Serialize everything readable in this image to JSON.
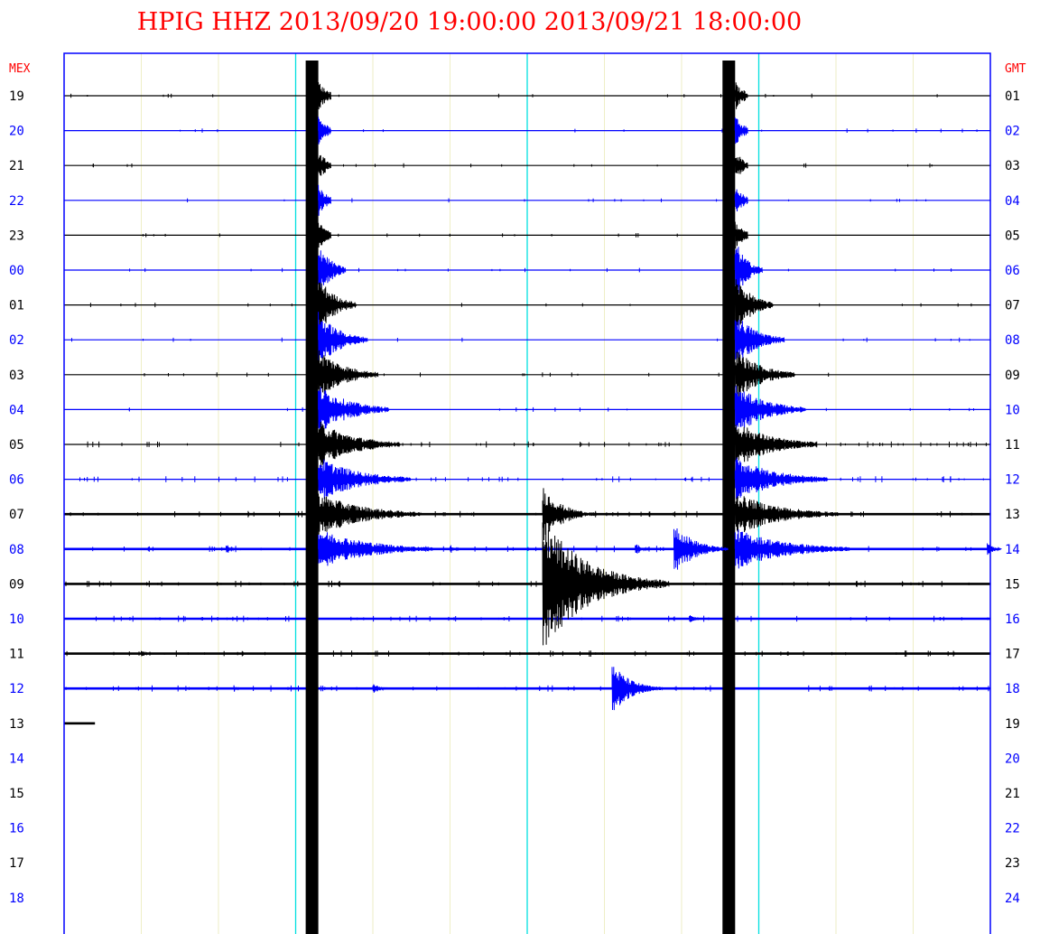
{
  "title": "HPIG HHZ 2013/09/20 19:00:00 2013/09/21 18:00:00",
  "left_header": "MEX",
  "right_header": "GMT",
  "colors": {
    "title": "#ff0000",
    "frame": "#0000ff",
    "trace_a": "#000000",
    "trace_b": "#0000ff",
    "grid": "#eeeec6",
    "marker": "#00e0e0"
  },
  "chart_data": {
    "type": "helicorder",
    "station": "HPIG",
    "channel": "HHZ",
    "start": "2013/09/20 19:00:00",
    "end": "2013/09/21 18:00:00",
    "minutes_per_line": 60,
    "grid_minutes": 5,
    "marker_minutes": [
      15,
      30,
      45
    ],
    "rows": [
      {
        "local": "19",
        "gmt": "01",
        "color": "black",
        "has_data": true
      },
      {
        "local": "20",
        "gmt": "02",
        "color": "blue",
        "has_data": true
      },
      {
        "local": "21",
        "gmt": "03",
        "color": "black",
        "has_data": true
      },
      {
        "local": "22",
        "gmt": "04",
        "color": "blue",
        "has_data": true
      },
      {
        "local": "23",
        "gmt": "05",
        "color": "black",
        "has_data": true
      },
      {
        "local": "00",
        "gmt": "06",
        "color": "blue",
        "has_data": true
      },
      {
        "local": "01",
        "gmt": "07",
        "color": "black",
        "has_data": true
      },
      {
        "local": "02",
        "gmt": "08",
        "color": "blue",
        "has_data": true
      },
      {
        "local": "03",
        "gmt": "09",
        "color": "black",
        "has_data": true
      },
      {
        "local": "04",
        "gmt": "10",
        "color": "blue",
        "has_data": true
      },
      {
        "local": "05",
        "gmt": "11",
        "color": "black",
        "has_data": true
      },
      {
        "local": "06",
        "gmt": "12",
        "color": "blue",
        "has_data": true
      },
      {
        "local": "07",
        "gmt": "13",
        "color": "black",
        "has_data": true
      },
      {
        "local": "08",
        "gmt": "14",
        "color": "blue",
        "has_data": true
      },
      {
        "local": "09",
        "gmt": "15",
        "color": "black",
        "has_data": true
      },
      {
        "local": "10",
        "gmt": "16",
        "color": "blue",
        "has_data": true
      },
      {
        "local": "11",
        "gmt": "17",
        "color": "black",
        "has_data": true
      },
      {
        "local": "12",
        "gmt": "18",
        "color": "blue",
        "has_data": true
      },
      {
        "local": "13",
        "gmt": "19",
        "color": "black",
        "has_data": true,
        "end_minute": 2
      },
      {
        "local": "14",
        "gmt": "20",
        "color": "blue",
        "has_data": false
      },
      {
        "local": "15",
        "gmt": "21",
        "color": "black",
        "has_data": false
      },
      {
        "local": "16",
        "gmt": "22",
        "color": "blue",
        "has_data": false
      },
      {
        "local": "17",
        "gmt": "23",
        "color": "black",
        "has_data": false
      },
      {
        "local": "18",
        "gmt": "24",
        "color": "blue",
        "has_data": false
      }
    ],
    "events": [
      {
        "name": "large-event-1",
        "row": 0,
        "minute": 16.0,
        "amplitude_rows": 28,
        "coda_rows": 14
      },
      {
        "name": "large-event-2",
        "row": 0,
        "minute": 43.0,
        "amplitude_rows": 28,
        "coda_rows": 14
      },
      {
        "name": "event-row07-a",
        "row": 12,
        "minute": 31.0,
        "amplitude_rows": 1.5
      },
      {
        "name": "event-row09-a",
        "row": 14,
        "minute": 31.0,
        "amplitude_rows": 3.5
      },
      {
        "name": "event-row08-a",
        "row": 13,
        "minute": 10.5,
        "amplitude_rows": 0.3
      },
      {
        "name": "event-row08-b",
        "row": 13,
        "minute": 25.0,
        "amplitude_rows": 0.3
      },
      {
        "name": "event-row08-c",
        "row": 13,
        "minute": 37.0,
        "amplitude_rows": 0.4
      },
      {
        "name": "event-row08-d",
        "row": 13,
        "minute": 39.5,
        "amplitude_rows": 1.5
      },
      {
        "name": "event-row08-e",
        "row": 13,
        "minute": 59.8,
        "amplitude_rows": 0.4
      },
      {
        "name": "event-row10-a",
        "row": 15,
        "minute": 40.5,
        "amplitude_rows": 0.3
      },
      {
        "name": "event-row11-a",
        "row": 16,
        "minute": 5.0,
        "amplitude_rows": 0.2
      },
      {
        "name": "event-row12-a",
        "row": 17,
        "minute": 11.0,
        "amplitude_rows": 0.2
      },
      {
        "name": "event-row12-b",
        "row": 17,
        "minute": 20.0,
        "amplitude_rows": 0.4
      },
      {
        "name": "event-row12-c",
        "row": 17,
        "minute": 35.5,
        "amplitude_rows": 1.4
      }
    ],
    "grid": true,
    "legend": "none"
  }
}
